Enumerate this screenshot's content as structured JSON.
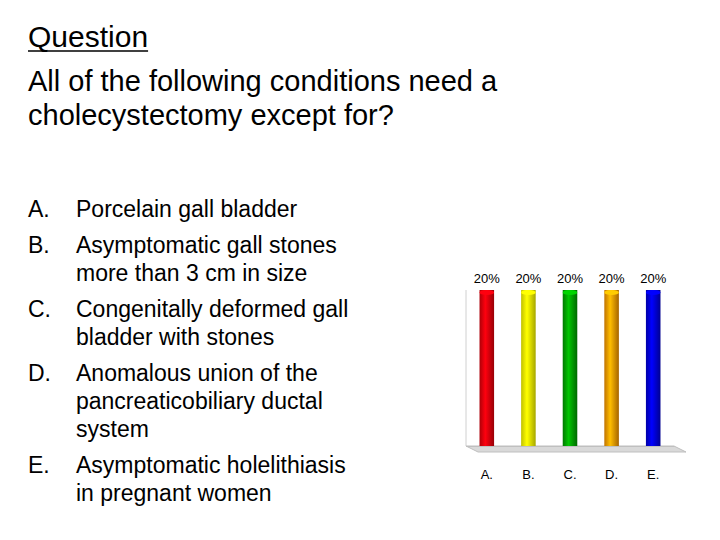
{
  "slide": {
    "heading": "Question",
    "question": [
      "All of the following conditions need a",
      "cholecystectomy except for?"
    ],
    "options": [
      {
        "letter": "A.",
        "lines": [
          "Porcelain gall bladder"
        ]
      },
      {
        "letter": "B.",
        "lines": [
          "Asymptomatic gall stones",
          "more than 3 cm in size"
        ]
      },
      {
        "letter": "C.",
        "lines": [
          "Congenitally deformed gall",
          "bladder with stones"
        ]
      },
      {
        "letter": "D.",
        "lines": [
          "Anomalous union of the",
          "pancreaticobiliary ductal",
          "system"
        ]
      },
      {
        "letter": "E.",
        "lines": [
          "Asymptomatic holelithiasis",
          "in pregnant women"
        ]
      }
    ]
  },
  "chart_data": {
    "type": "bar",
    "categories": [
      "A.",
      "B.",
      "C.",
      "D.",
      "E."
    ],
    "values": [
      20,
      20,
      20,
      20,
      20
    ],
    "value_labels": [
      "20%",
      "20%",
      "20%",
      "20%",
      "20%"
    ],
    "colors": [
      "#e8000b",
      "#ffff00",
      "#00a000",
      "#ff9900",
      "#0000dd"
    ],
    "ylim": [
      0,
      20
    ],
    "data_labels": true,
    "tick_labels": "x"
  }
}
